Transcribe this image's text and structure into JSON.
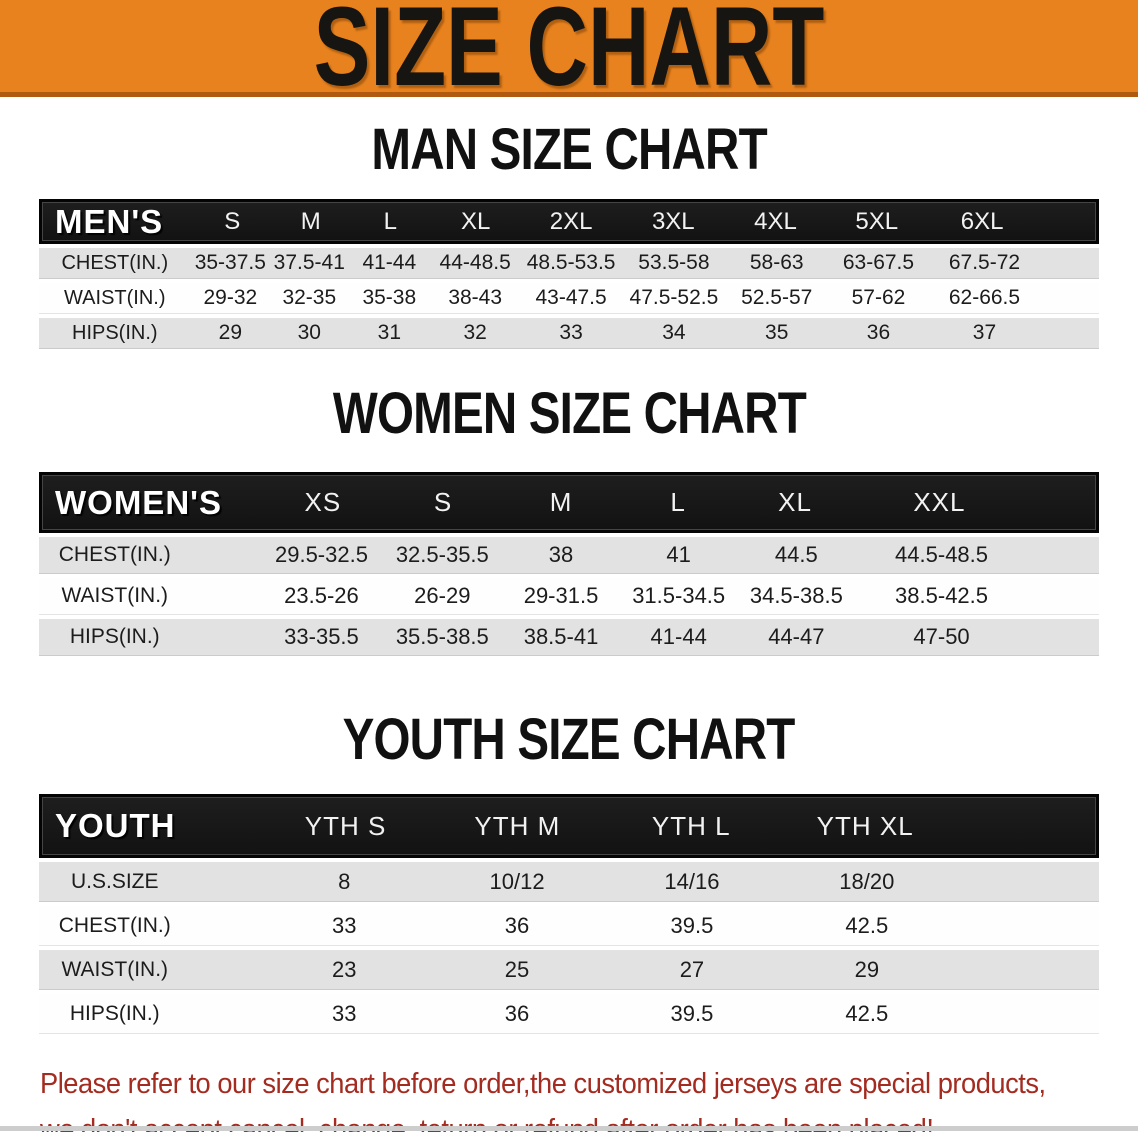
{
  "banner": {
    "title": "SIZE CHART",
    "bg_color": "#E8821E",
    "shadow_color": "#B05A0F",
    "text_color": "#171512"
  },
  "sections": [
    {
      "id": "men",
      "heading": "MAN SIZE CHART",
      "table": {
        "header": {
          "label": "MEN'S",
          "sizes": [
            "S",
            "M",
            "L",
            "XL",
            "2XL",
            "3XL",
            "4XL",
            "5XL",
            "6XL"
          ]
        },
        "rows": [
          {
            "label": "CHEST(IN.)",
            "values": [
              "35-37.5",
              "37.5-41",
              "41-44",
              "44-48.5",
              "48.5-53.5",
              "53.5-58",
              "58-63",
              "63-67.5",
              "67.5-72"
            ]
          },
          {
            "label": "WAIST(IN.)",
            "values": [
              "29-32",
              "32-35",
              "35-38",
              "38-43",
              "43-47.5",
              "47.5-52.5",
              "52.5-57",
              "57-62",
              "62-66.5"
            ]
          },
          {
            "label": "HIPS(IN.)",
            "values": [
              "29",
              "30",
              "31",
              "32",
              "33",
              "34",
              "35",
              "36",
              "37"
            ]
          }
        ]
      }
    },
    {
      "id": "women",
      "heading": "WOMEN SIZE CHART",
      "table": {
        "header": {
          "label": "WOMEN'S",
          "sizes": [
            "XS",
            "S",
            "M",
            "L",
            "XL",
            "XXL"
          ]
        },
        "rows": [
          {
            "label": "CHEST(IN.)",
            "values": [
              "29.5-32.5",
              "32.5-35.5",
              "38",
              "41",
              "44.5",
              "44.5-48.5"
            ]
          },
          {
            "label": "WAIST(IN.)",
            "values": [
              "23.5-26",
              "26-29",
              "29-31.5",
              "31.5-34.5",
              "34.5-38.5",
              "38.5-42.5"
            ]
          },
          {
            "label": "HIPS(IN.)",
            "values": [
              "33-35.5",
              "35.5-38.5",
              "38.5-41",
              "41-44",
              "44-47",
              "47-50"
            ]
          }
        ]
      }
    },
    {
      "id": "youth",
      "heading": "YOUTH SIZE CHART",
      "table": {
        "header": {
          "label": "YOUTH",
          "sizes": [
            "YTH S",
            "YTH M",
            "YTH L",
            "YTH XL"
          ]
        },
        "rows": [
          {
            "label": "U.S.SIZE",
            "values": [
              "8",
              "10/12",
              "14/16",
              "18/20"
            ]
          },
          {
            "label": "CHEST(IN.)",
            "values": [
              "33",
              "36",
              "39.5",
              "42.5"
            ]
          },
          {
            "label": "WAIST(IN.)",
            "values": [
              "23",
              "25",
              "27",
              "29"
            ]
          },
          {
            "label": "HIPS(IN.)",
            "values": [
              "33",
              "36",
              "39.5",
              "42.5"
            ]
          }
        ]
      }
    }
  ],
  "disclaimer": {
    "line1": "Please refer to our size chart before order,the customized jerseys are special products,",
    "line2": "we don't accept cancel, change, teturn or refund after order has been placed!",
    "text_color": "#A32B20"
  },
  "colors": {
    "table_header_bg": "#161616",
    "row_gray": "#E2E2E2",
    "row_white": "#FEFEFE",
    "bottom_divider": "#CDCDCD"
  }
}
